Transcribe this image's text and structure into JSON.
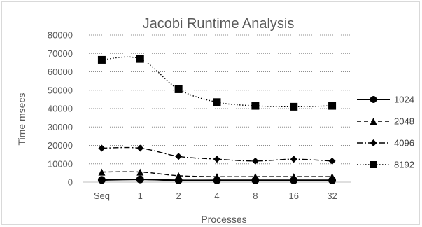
{
  "chart_data": {
    "type": "line",
    "title": "Jacobi Runtime Analysis",
    "xlabel": "Processes",
    "ylabel": "Time msecs",
    "categories": [
      "Seq",
      "1",
      "2",
      "4",
      "8",
      "16",
      "32"
    ],
    "ylim": [
      0,
      80000
    ],
    "yticks": [
      0,
      10000,
      20000,
      30000,
      40000,
      50000,
      60000,
      70000,
      80000
    ],
    "grid": true,
    "legend_position": "right",
    "series": [
      {
        "name": "1024",
        "marker": "circle",
        "dash": "solid",
        "color": "#000000",
        "values": [
          1200,
          1500,
          1000,
          1000,
          1000,
          1000,
          1000
        ]
      },
      {
        "name": "2048",
        "marker": "triangle",
        "dash": "dash",
        "color": "#000000",
        "values": [
          5500,
          5500,
          3500,
          3000,
          3000,
          3000,
          3000
        ]
      },
      {
        "name": "4096",
        "marker": "diamond",
        "dash": "dashdot",
        "color": "#000000",
        "values": [
          18500,
          18500,
          14000,
          12500,
          11500,
          12500,
          11500
        ]
      },
      {
        "name": "8192",
        "marker": "square",
        "dash": "dot",
        "color": "#000000",
        "values": [
          66500,
          67000,
          50500,
          43500,
          41500,
          41000,
          41500
        ]
      }
    ]
  }
}
